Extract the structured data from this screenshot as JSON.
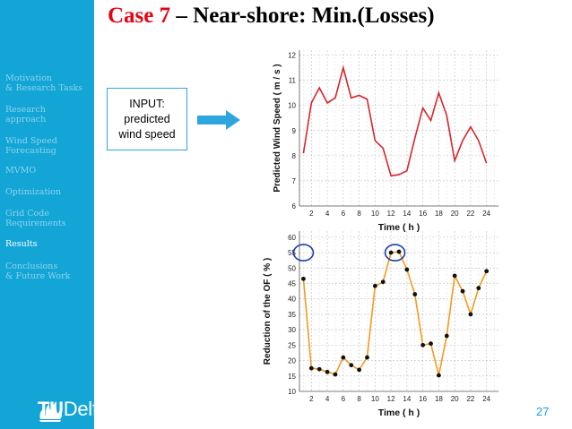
{
  "sidebar": {
    "items": [
      {
        "label": "Motivation\n& Research Tasks",
        "active": false
      },
      {
        "label": "Research\napproach",
        "active": false
      },
      {
        "label": "Wind Speed\nForecasting",
        "active": false
      },
      {
        "label": "MVMO",
        "active": false
      },
      {
        "label": "Optimization",
        "active": false
      },
      {
        "label": "Grid Code\nRequirements",
        "active": false
      },
      {
        "label": "Results",
        "active": true
      },
      {
        "label": "Conclusions\n& Future Work",
        "active": false
      }
    ],
    "logo": {
      "prefix": "TU",
      "suffix": "Delft"
    }
  },
  "title": {
    "part1": "Case 7",
    "part2": " – Near-shore: Min.(Losses)"
  },
  "input_box": {
    "text": "INPUT:\npredicted\nwind speed"
  },
  "page_number": "27",
  "colors": {
    "sidebar": "#12a5d6",
    "title_accent": "#e30613",
    "wind_line": "#d6262b",
    "reduction_line": "#f39a1e",
    "highlight_circle": "#1f3fa8",
    "arrow": "#2ea6dd"
  },
  "chart_data": [
    {
      "type": "line",
      "xlabel": "Time ( h )",
      "ylabel": "Predicted Wind Speed ( m / s )",
      "xlim": [
        0.5,
        25.5
      ],
      "ylim": [
        6,
        12.2
      ],
      "xticks": [
        2,
        4,
        6,
        8,
        10,
        12,
        14,
        16,
        18,
        20,
        22,
        24
      ],
      "yticks": [
        6,
        7,
        8,
        9,
        10,
        11,
        12
      ],
      "grid": true,
      "x": [
        1,
        2,
        3,
        4,
        5,
        6,
        7,
        8,
        9,
        10,
        11,
        12,
        13,
        14,
        15,
        16,
        17,
        18,
        19,
        20,
        21,
        22,
        23,
        24
      ],
      "series": [
        {
          "values": [
            8.1,
            10.1,
            10.7,
            10.1,
            10.3,
            11.5,
            10.3,
            10.4,
            10.25,
            8.6,
            8.3,
            7.2,
            7.25,
            7.4,
            8.7,
            9.9,
            9.4,
            10.5,
            9.6,
            7.8,
            8.6,
            9.15,
            8.6,
            7.7
          ]
        }
      ]
    },
    {
      "type": "line",
      "xlabel": "Time ( h )",
      "ylabel": "Reduction of the OF ( % )",
      "xlim": [
        0.5,
        25.5
      ],
      "ylim": [
        10,
        62
      ],
      "xticks": [
        2,
        4,
        6,
        8,
        10,
        12,
        14,
        16,
        18,
        20,
        22,
        24
      ],
      "yticks": [
        10,
        15,
        20,
        25,
        30,
        35,
        40,
        45,
        50,
        55,
        60
      ],
      "grid": true,
      "x": [
        1,
        2,
        3,
        4,
        5,
        6,
        7,
        8,
        9,
        10,
        11,
        12,
        13,
        14,
        15,
        16,
        17,
        18,
        19,
        20,
        21,
        22,
        23,
        24
      ],
      "series": [
        {
          "values": [
            46.5,
            17.5,
            17.2,
            16.3,
            15.5,
            21,
            18.5,
            17,
            21,
            44.2,
            45.5,
            55,
            55.3,
            49.5,
            41.5,
            25,
            25.5,
            15.2,
            28,
            47.5,
            42.5,
            35,
            43.5,
            49
          ]
        }
      ],
      "highlight_points": [
        1,
        12.5
      ]
    }
  ]
}
